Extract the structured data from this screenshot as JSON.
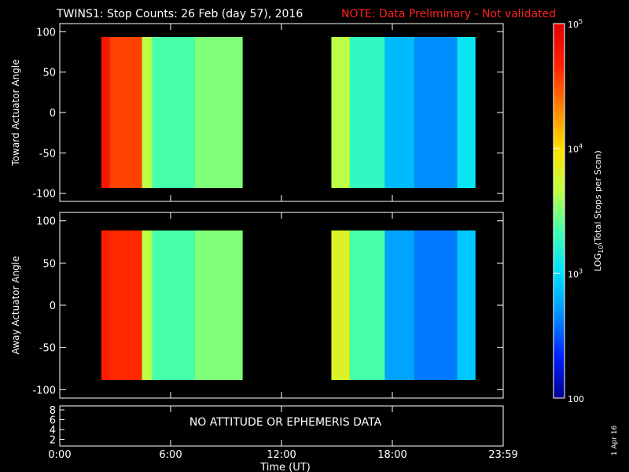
{
  "header": {
    "title": "TWINS1: Stop Counts: 26 Feb (day  57), 2016",
    "note": "NOTE: Data Preliminary - Not validated",
    "note_color": "#ff2020"
  },
  "side_stamp": "1 Apr 16",
  "chart_data": [
    {
      "type": "heatmap",
      "panel": "toward",
      "ylabel": "Toward Actuator Angle",
      "ylim": [
        -110,
        110
      ],
      "yticks": [
        100,
        50,
        0,
        -50,
        -100
      ],
      "xlim_hours": [
        0,
        24
      ],
      "data_blocks_hours": [
        [
          2.25,
          9.9
        ],
        [
          14.7,
          22.5
        ]
      ],
      "bands": [
        {
          "hours": [
            2.25,
            2.7
          ],
          "level": 0.92
        },
        {
          "hours": [
            2.7,
            4.45
          ],
          "level": 0.85
        },
        {
          "hours": [
            4.45,
            5.0
          ],
          "level": 0.55
        },
        {
          "hours": [
            5.0,
            7.3
          ],
          "level": 0.45
        },
        {
          "hours": [
            7.3,
            9.9
          ],
          "level": 0.5
        },
        {
          "hours": [
            14.7,
            15.7
          ],
          "level": 0.55
        },
        {
          "hours": [
            15.7,
            17.6
          ],
          "level": 0.42
        },
        {
          "hours": [
            17.6,
            19.2
          ],
          "level": 0.28
        },
        {
          "hours": [
            19.2,
            21.5
          ],
          "level": 0.22
        },
        {
          "hours": [
            21.5,
            22.5
          ],
          "level": 0.35
        }
      ]
    },
    {
      "type": "heatmap",
      "panel": "away",
      "ylabel": "Away Actuator Angle",
      "ylim": [
        -110,
        110
      ],
      "yticks": [
        100,
        50,
        0,
        -50,
        -100
      ],
      "xlim_hours": [
        0,
        24
      ],
      "data_blocks_hours": [
        [
          2.25,
          9.9
        ],
        [
          14.7,
          22.5
        ]
      ],
      "bands": [
        {
          "hours": [
            2.25,
            2.7
          ],
          "level": 0.9
        },
        {
          "hours": [
            2.7,
            4.45
          ],
          "level": 0.88
        },
        {
          "hours": [
            4.45,
            5.0
          ],
          "level": 0.55
        },
        {
          "hours": [
            5.0,
            7.3
          ],
          "level": 0.45
        },
        {
          "hours": [
            7.3,
            9.9
          ],
          "level": 0.5
        },
        {
          "hours": [
            14.7,
            15.7
          ],
          "level": 0.6
        },
        {
          "hours": [
            15.7,
            17.6
          ],
          "level": 0.45
        },
        {
          "hours": [
            17.6,
            19.2
          ],
          "level": 0.25
        },
        {
          "hours": [
            19.2,
            21.5
          ],
          "level": 0.2
        },
        {
          "hours": [
            21.5,
            22.5
          ],
          "level": 0.3
        }
      ]
    },
    {
      "type": "table",
      "panel": "ephemeris",
      "yticks": [
        8,
        6,
        4,
        2
      ],
      "message": "NO ATTITUDE OR EPHEMERIS DATA"
    }
  ],
  "x_axis": {
    "ticks": [
      {
        "hour": 0,
        "label": "0:00"
      },
      {
        "hour": 6,
        "label": "6:00"
      },
      {
        "hour": 12,
        "label": "12:00"
      },
      {
        "hour": 18,
        "label": "18:00"
      },
      {
        "hour": 24,
        "label": "23:59"
      }
    ],
    "label": "Time (UT)"
  },
  "colorbar": {
    "label_main": "LOG",
    "label_sub": "10",
    "label_rest": "(Total Stops per Scan)",
    "ticks": [
      {
        "level": 1.0,
        "label": "10",
        "exp": "5"
      },
      {
        "level": 0.6667,
        "label": "10",
        "exp": "4"
      },
      {
        "level": 0.3333,
        "label": "10",
        "exp": "3"
      },
      {
        "level": 0.0,
        "label": "100",
        "exp": ""
      }
    ],
    "colormap": [
      "#00008c",
      "#0020ff",
      "#0090ff",
      "#00e0ff",
      "#40ffb0",
      "#c0ff40",
      "#ffe000",
      "#ff8000",
      "#ff2000",
      "#e00000"
    ]
  }
}
